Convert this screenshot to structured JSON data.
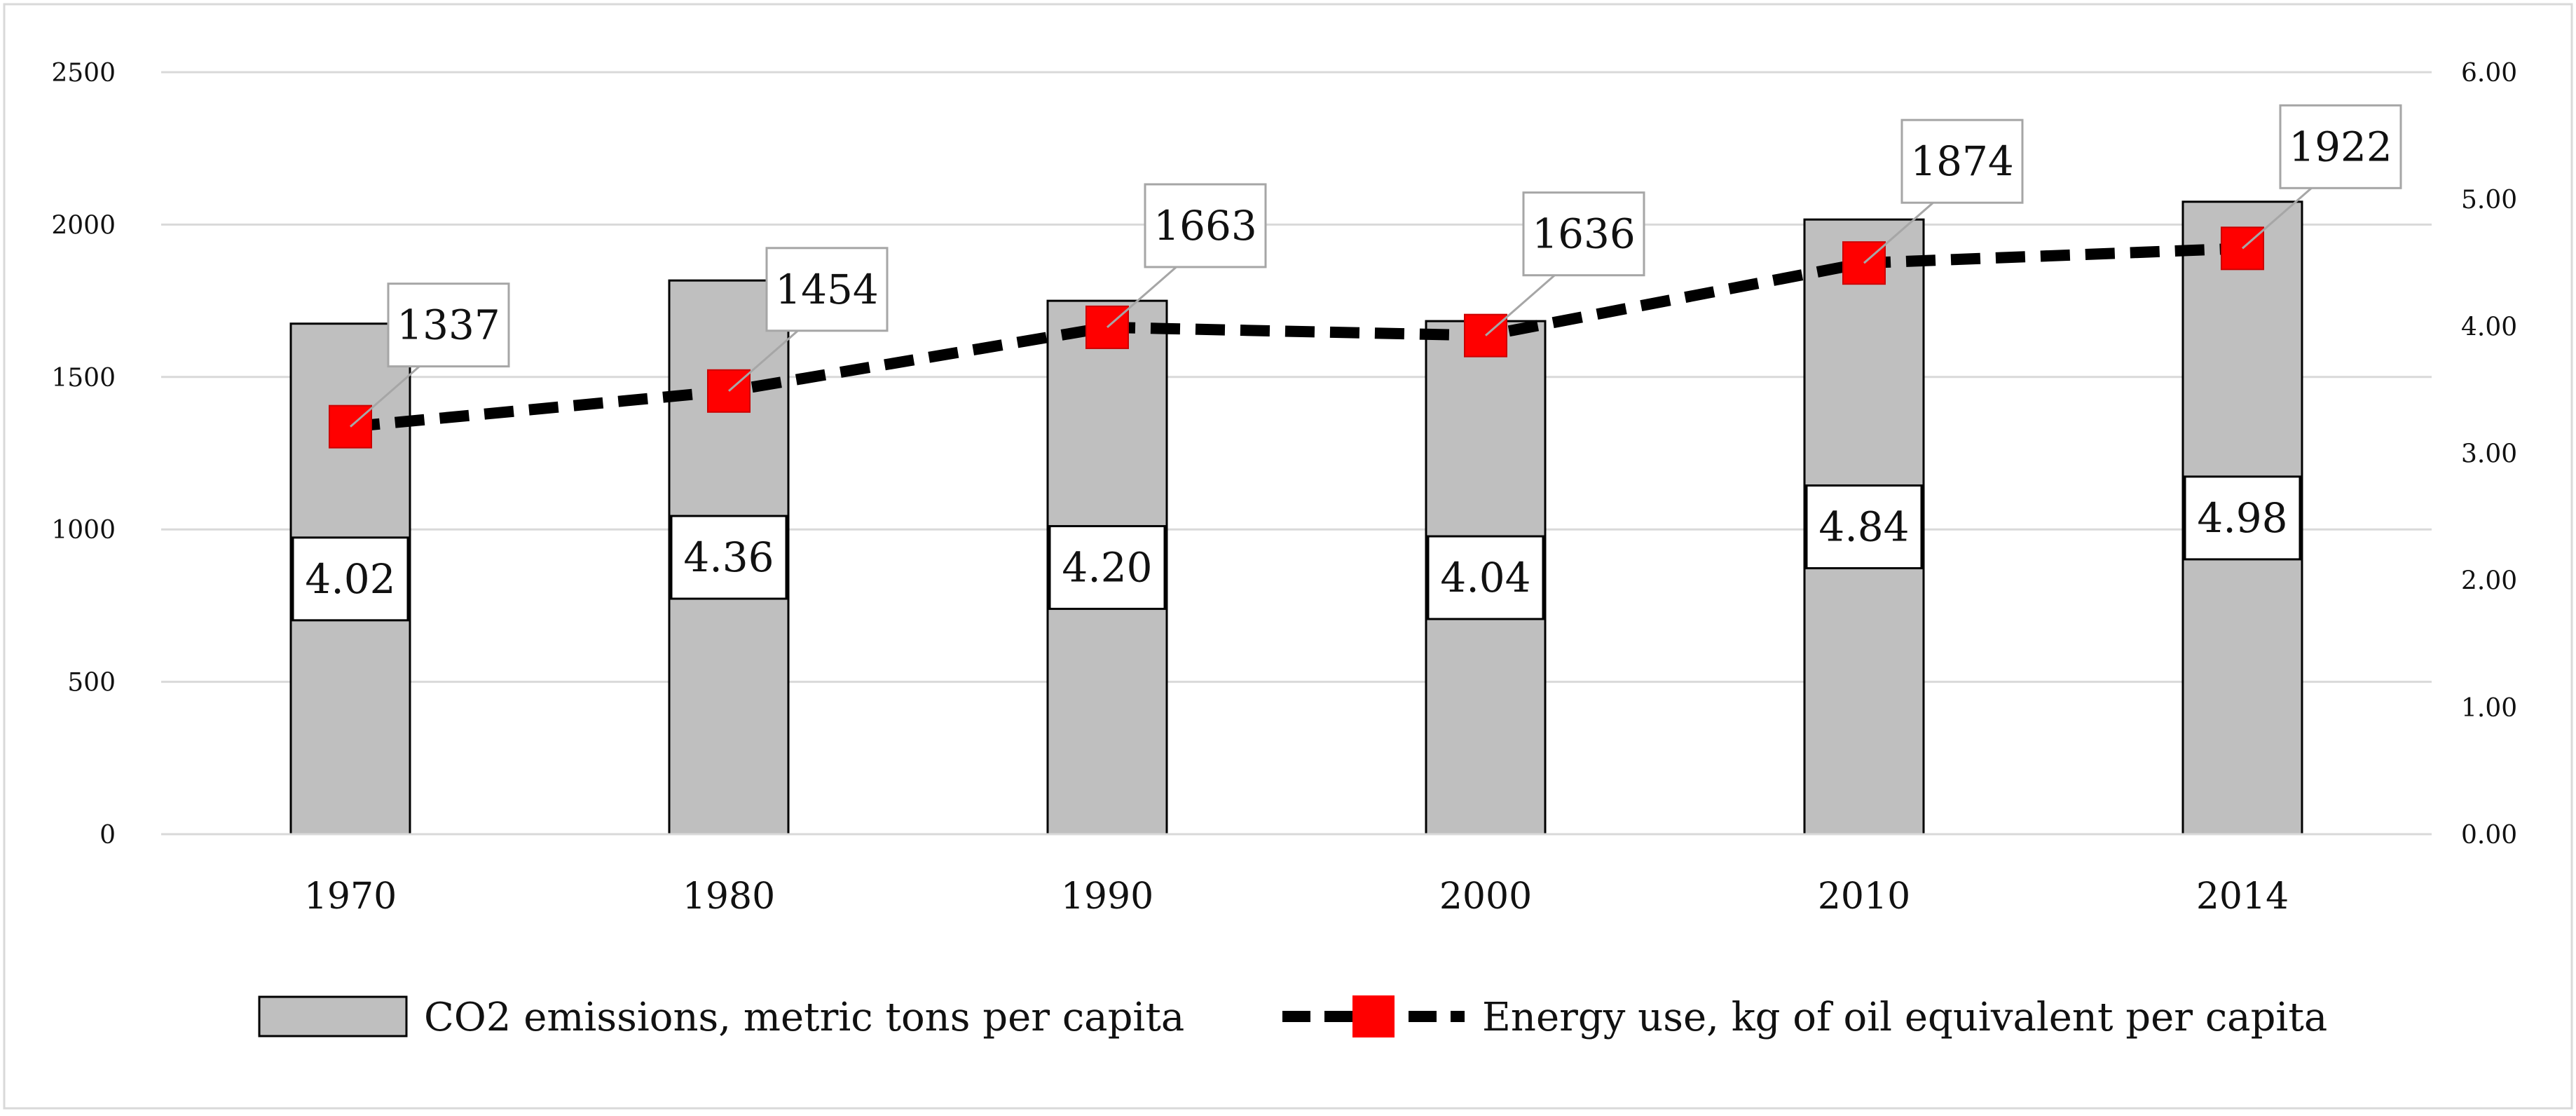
{
  "chart_data": {
    "type": "bar",
    "categories": [
      "1970",
      "1980",
      "1990",
      "2000",
      "2010",
      "2014"
    ],
    "series": [
      {
        "name": "CO2 emissions, metric tons per capita",
        "type": "bar",
        "axis": "right",
        "values": [
          4.02,
          4.36,
          4.2,
          4.04,
          4.84,
          4.98
        ],
        "labels": [
          "4.02",
          "4.36",
          "4.20",
          "4.04",
          "4.84",
          "4.98"
        ],
        "color": "#bfbfbf"
      },
      {
        "name": "Energy use, kg of oil equivalent per capita",
        "type": "line",
        "axis": "left",
        "values": [
          1337,
          1454,
          1663,
          1636,
          1874,
          1922
        ],
        "labels": [
          "1337",
          "1454",
          "1663",
          "1636",
          "1874",
          "1922"
        ],
        "line_color": "#000000",
        "marker_color": "#ff0000"
      }
    ],
    "y_left": {
      "ylim": [
        0,
        2500
      ],
      "ticks": [
        "0",
        "500",
        "1000",
        "1500",
        "2000",
        "2500"
      ]
    },
    "y_right": {
      "ylim": [
        0,
        6
      ],
      "ticks": [
        "0.00",
        "1.00",
        "2.00",
        "3.00",
        "4.00",
        "5.00",
        "6.00"
      ]
    },
    "grid": true,
    "legend": "bottom",
    "title": "",
    "xlabel": "",
    "ylabel": ""
  }
}
